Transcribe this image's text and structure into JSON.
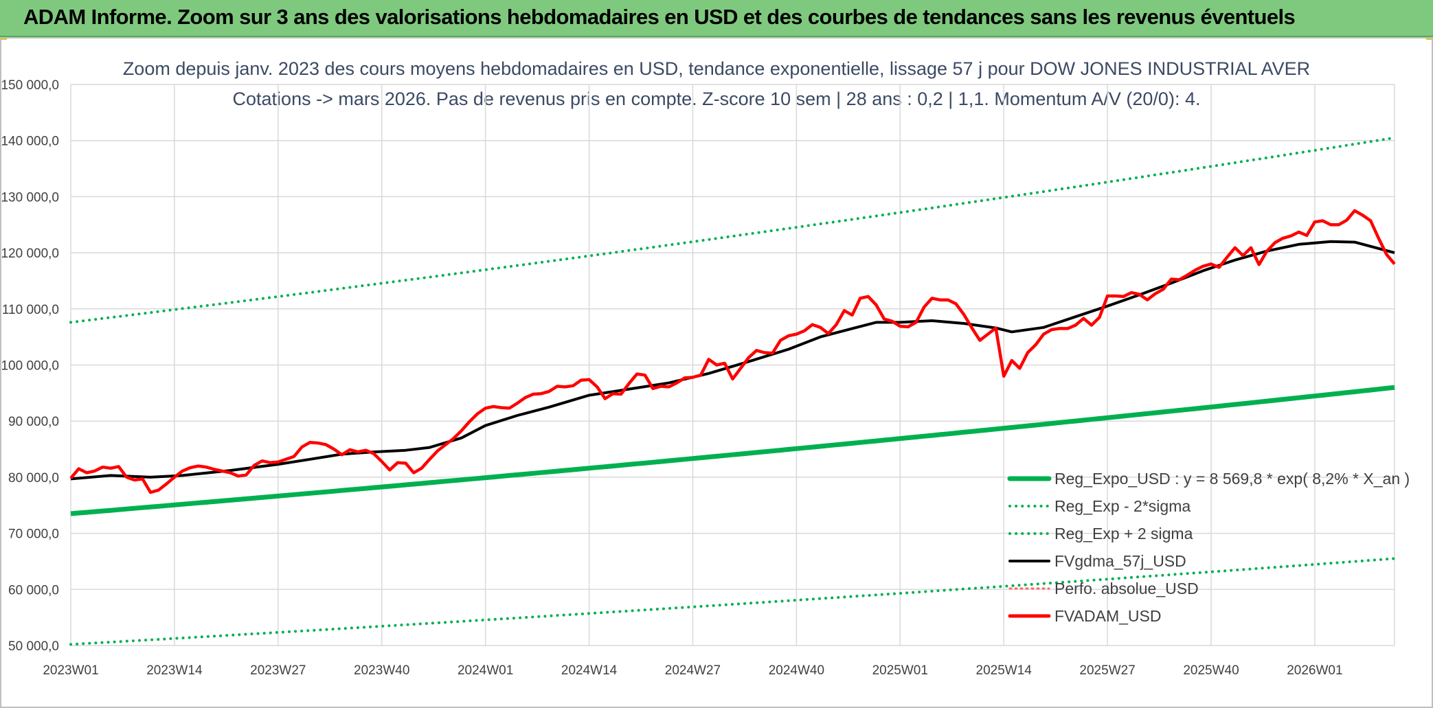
{
  "header": {
    "banner": "ADAM Informe. Zoom sur 3 ans des valorisations hebdomadaires en USD et des courbes de tendances sans les revenus éventuels"
  },
  "chart_data": {
    "type": "line",
    "title": "Zoom depuis janv. 2023 des cours moyens hebdomadaires en USD, tendance exponentielle, lissage 57 j pour DOW JONES INDUSTRIAL AVER",
    "subtitle": "Cotations -> mars 2026. Pas de revenus pris en compte. Z-score 10 sem | 28 ans : 0,2 | 1,1. Momentum A/V (20/0): 4.",
    "ylim": [
      50000,
      150000
    ],
    "yticks": [
      50000,
      60000,
      70000,
      80000,
      90000,
      100000,
      110000,
      120000,
      130000,
      140000,
      150000
    ],
    "ytick_labels": [
      "50 000,0",
      "60 000,0",
      "70 000,0",
      "80 000,0",
      "90 000,0",
      "100 000,0",
      "110 000,0",
      "120 000,0",
      "130 000,0",
      "140 000,0",
      "150 000,0"
    ],
    "x_count": 167,
    "xtick_labels": [
      "2023W01",
      "2023W14",
      "2023W27",
      "2023W40",
      "2024W01",
      "2024W14",
      "2024W27",
      "2024W40",
      "2025W01",
      "2025W14",
      "2025W27",
      "2025W40",
      "2026W01"
    ],
    "xtick_step": 13,
    "grid": true,
    "legend_position": "bottom-right",
    "colors": {
      "regression": "#00b050",
      "smooth": "#000000",
      "price": "#ff0000",
      "perfo": "#ff6666",
      "grid": "#d9d9d9"
    },
    "series": [
      {
        "name": "Reg_Expo_USD : y = 8 569,8 * exp( 8,2% *  X_an )",
        "style": "solid",
        "anchors": [
          [
            0,
            73500
          ],
          [
            166,
            96000
          ]
        ]
      },
      {
        "name": "Reg_Exp - 2*sigma",
        "style": "dotted",
        "anchors": [
          [
            0,
            50200
          ],
          [
            166,
            65500
          ]
        ]
      },
      {
        "name": "Reg_Exp + 2 sigma",
        "style": "dotted",
        "anchors": [
          [
            0,
            107600
          ],
          [
            166,
            140500
          ]
        ]
      },
      {
        "name": "FVgdma_57j_USD",
        "style": "solid",
        "anchors": [
          [
            0,
            79700
          ],
          [
            5,
            80300
          ],
          [
            10,
            80000
          ],
          [
            14,
            80300
          ],
          [
            20,
            81200
          ],
          [
            26,
            82300
          ],
          [
            30,
            83200
          ],
          [
            34,
            84100
          ],
          [
            38,
            84500
          ],
          [
            42,
            84800
          ],
          [
            45,
            85300
          ],
          [
            49,
            87000
          ],
          [
            52,
            89200
          ],
          [
            56,
            91000
          ],
          [
            60,
            92500
          ],
          [
            65,
            94600
          ],
          [
            70,
            95700
          ],
          [
            75,
            96800
          ],
          [
            80,
            98500
          ],
          [
            85,
            100600
          ],
          [
            90,
            102800
          ],
          [
            94,
            105000
          ],
          [
            98,
            106500
          ],
          [
            101,
            107600
          ],
          [
            104,
            107600
          ],
          [
            108,
            107900
          ],
          [
            112,
            107400
          ],
          [
            116,
            106600
          ],
          [
            118,
            105900
          ],
          [
            122,
            106700
          ],
          [
            126,
            108600
          ],
          [
            130,
            110500
          ],
          [
            134,
            112500
          ],
          [
            138,
            114600
          ],
          [
            142,
            116800
          ],
          [
            146,
            118700
          ],
          [
            150,
            120300
          ],
          [
            154,
            121500
          ],
          [
            158,
            122000
          ],
          [
            161,
            121900
          ],
          [
            166,
            120000
          ]
        ]
      },
      {
        "name": "Perfo. absolue_USD",
        "style": "dashed",
        "anchors": []
      },
      {
        "name": "FVADAM_USD",
        "style": "solid",
        "anchors": [
          [
            0,
            79800
          ],
          [
            1,
            81500
          ],
          [
            2,
            80800
          ],
          [
            3,
            81100
          ],
          [
            4,
            81800
          ],
          [
            5,
            81600
          ],
          [
            6,
            81900
          ],
          [
            7,
            80000
          ],
          [
            8,
            79500
          ],
          [
            9,
            79700
          ],
          [
            10,
            77300
          ],
          [
            11,
            77700
          ],
          [
            12,
            78800
          ],
          [
            13,
            80000
          ],
          [
            14,
            81100
          ],
          [
            15,
            81700
          ],
          [
            16,
            82000
          ],
          [
            17,
            81800
          ],
          [
            18,
            81400
          ],
          [
            19,
            81100
          ],
          [
            20,
            80800
          ],
          [
            21,
            80200
          ],
          [
            22,
            80400
          ],
          [
            23,
            82100
          ],
          [
            24,
            82900
          ],
          [
            25,
            82600
          ],
          [
            26,
            82700
          ],
          [
            27,
            83200
          ],
          [
            28,
            83700
          ],
          [
            29,
            85400
          ],
          [
            30,
            86200
          ],
          [
            31,
            86100
          ],
          [
            32,
            85800
          ],
          [
            33,
            85000
          ],
          [
            34,
            84000
          ],
          [
            35,
            84900
          ],
          [
            36,
            84500
          ],
          [
            37,
            84800
          ],
          [
            38,
            84200
          ],
          [
            39,
            82800
          ],
          [
            40,
            81300
          ],
          [
            41,
            82600
          ],
          [
            42,
            82500
          ],
          [
            43,
            80800
          ],
          [
            44,
            81600
          ],
          [
            45,
            83200
          ],
          [
            46,
            84700
          ],
          [
            47,
            85800
          ],
          [
            48,
            86900
          ],
          [
            49,
            88300
          ],
          [
            50,
            89900
          ],
          [
            51,
            91300
          ],
          [
            52,
            92300
          ],
          [
            53,
            92600
          ],
          [
            54,
            92400
          ],
          [
            55,
            92300
          ],
          [
            56,
            93200
          ],
          [
            57,
            94200
          ],
          [
            58,
            94800
          ],
          [
            59,
            94900
          ],
          [
            60,
            95300
          ],
          [
            61,
            96200
          ],
          [
            62,
            96100
          ],
          [
            63,
            96300
          ],
          [
            64,
            97300
          ],
          [
            65,
            97400
          ],
          [
            66,
            96100
          ],
          [
            67,
            94000
          ],
          [
            68,
            94900
          ],
          [
            69,
            94800
          ],
          [
            70,
            96700
          ],
          [
            71,
            98400
          ],
          [
            72,
            98200
          ],
          [
            73,
            95800
          ],
          [
            74,
            96200
          ],
          [
            75,
            96100
          ],
          [
            76,
            96800
          ],
          [
            77,
            97700
          ],
          [
            78,
            97800
          ],
          [
            79,
            98200
          ],
          [
            80,
            101000
          ],
          [
            81,
            100000
          ],
          [
            82,
            100300
          ],
          [
            83,
            97500
          ],
          [
            84,
            99400
          ],
          [
            85,
            101300
          ],
          [
            86,
            102600
          ],
          [
            87,
            102200
          ],
          [
            88,
            102100
          ],
          [
            89,
            104400
          ],
          [
            90,
            105200
          ],
          [
            91,
            105500
          ],
          [
            92,
            106100
          ],
          [
            93,
            107200
          ],
          [
            94,
            106700
          ],
          [
            95,
            105600
          ],
          [
            96,
            107200
          ],
          [
            97,
            109700
          ],
          [
            98,
            108900
          ],
          [
            99,
            111900
          ],
          [
            100,
            112200
          ],
          [
            101,
            110700
          ],
          [
            102,
            108200
          ],
          [
            103,
            107800
          ],
          [
            104,
            106900
          ],
          [
            105,
            106800
          ],
          [
            106,
            107600
          ],
          [
            107,
            110300
          ],
          [
            108,
            111900
          ],
          [
            109,
            111600
          ],
          [
            110,
            111600
          ],
          [
            111,
            110900
          ],
          [
            112,
            109000
          ],
          [
            113,
            106600
          ],
          [
            114,
            104400
          ],
          [
            115,
            105500
          ],
          [
            116,
            106600
          ],
          [
            117,
            98000
          ],
          [
            118,
            100800
          ],
          [
            119,
            99400
          ],
          [
            120,
            102200
          ],
          [
            121,
            103600
          ],
          [
            122,
            105500
          ],
          [
            123,
            106300
          ],
          [
            124,
            106500
          ],
          [
            125,
            106500
          ],
          [
            126,
            107100
          ],
          [
            127,
            108300
          ],
          [
            128,
            107100
          ],
          [
            129,
            108500
          ],
          [
            130,
            112300
          ],
          [
            131,
            112300
          ],
          [
            132,
            112200
          ],
          [
            133,
            112900
          ],
          [
            134,
            112600
          ],
          [
            135,
            111600
          ],
          [
            136,
            112700
          ],
          [
            137,
            113500
          ],
          [
            138,
            115300
          ],
          [
            139,
            115200
          ],
          [
            140,
            116000
          ],
          [
            141,
            116900
          ],
          [
            142,
            117600
          ],
          [
            143,
            118000
          ],
          [
            144,
            117400
          ],
          [
            145,
            119200
          ],
          [
            146,
            120900
          ],
          [
            147,
            119500
          ],
          [
            148,
            120900
          ],
          [
            149,
            117900
          ],
          [
            150,
            120300
          ],
          [
            151,
            121800
          ],
          [
            152,
            122600
          ],
          [
            153,
            123000
          ],
          [
            154,
            123700
          ],
          [
            155,
            123100
          ],
          [
            156,
            125500
          ],
          [
            157,
            125700
          ],
          [
            158,
            125000
          ],
          [
            159,
            125000
          ],
          [
            160,
            125800
          ],
          [
            161,
            127500
          ],
          [
            162,
            126700
          ],
          [
            163,
            125700
          ],
          [
            164,
            122600
          ],
          [
            165,
            119700
          ],
          [
            166,
            118000
          ]
        ]
      }
    ]
  }
}
